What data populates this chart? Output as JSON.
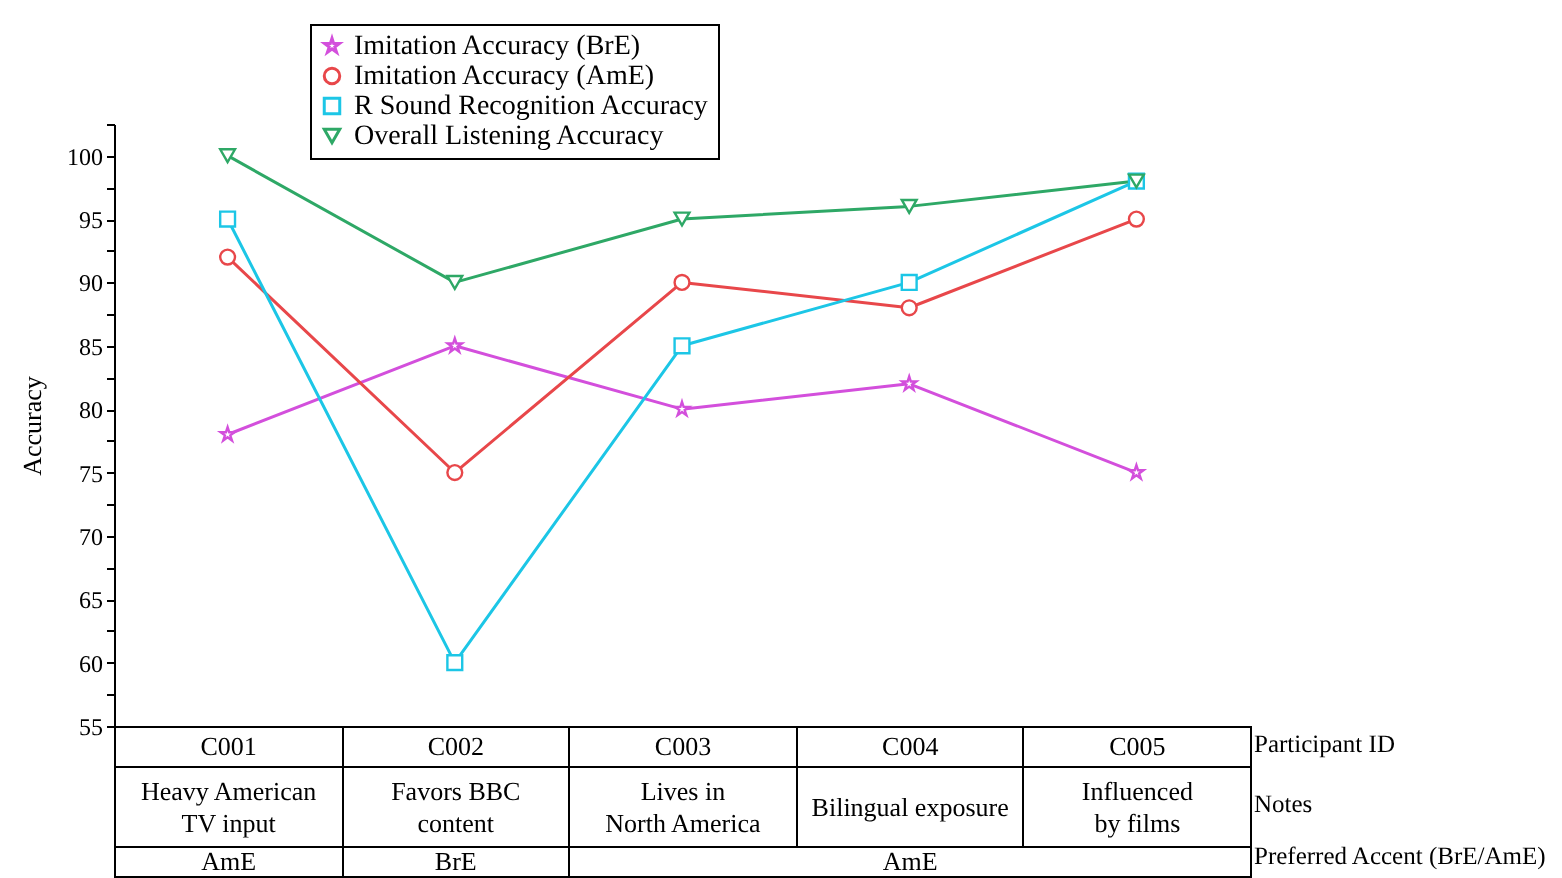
{
  "chart_data": {
    "type": "line",
    "ylabel": "Accuracy",
    "categories": [
      "C001",
      "C002",
      "C003",
      "C004",
      "C005"
    ],
    "series": [
      {
        "name": "Imitation Accuracy (BrE)",
        "color": "#d34fdc",
        "marker": "star",
        "values": [
          78,
          85,
          80,
          82,
          75
        ]
      },
      {
        "name": "Imitation Accuracy (AmE)",
        "color": "#e8474a",
        "marker": "circle",
        "values": [
          92,
          75,
          90,
          88,
          95
        ]
      },
      {
        "name": "R Sound Recognition Accuracy",
        "color": "#1cc6e6",
        "marker": "square",
        "values": [
          95,
          60,
          85,
          90,
          98
        ]
      },
      {
        "name": "Overall Listening Accuracy",
        "color": "#2ea866",
        "marker": "triangle",
        "values": [
          100,
          90,
          95,
          96,
          98
        ]
      }
    ],
    "ylim": [
      55,
      102.5
    ],
    "yticks": [
      55,
      {
        "value": 57.5,
        "label": null
      },
      60,
      {
        "value": 62.5,
        "label": null
      },
      65,
      {
        "value": 67.5,
        "label": null
      },
      70,
      {
        "value": 72.5,
        "label": null
      },
      75,
      {
        "value": 77.5,
        "label": null
      },
      80,
      {
        "value": 82.5,
        "label": null
      },
      85,
      {
        "value": 87.5,
        "label": null
      },
      90,
      {
        "value": 92.5,
        "label": null
      },
      95,
      {
        "value": 97.5,
        "label": null
      },
      100,
      {
        "value": 102.5,
        "label": null
      }
    ],
    "legend": "top",
    "grid": false,
    "annotations": [
      "Participant ID",
      "Notes",
      "Heavy American\nTV input",
      "Favors BBC\ncontent",
      "Lives in\nNorth America",
      "Bilingual exposure",
      "Influenced\nby films",
      "Preferred Accent (BrE/AmE)",
      "AmE",
      "BrE",
      "AmE"
    ]
  }
}
